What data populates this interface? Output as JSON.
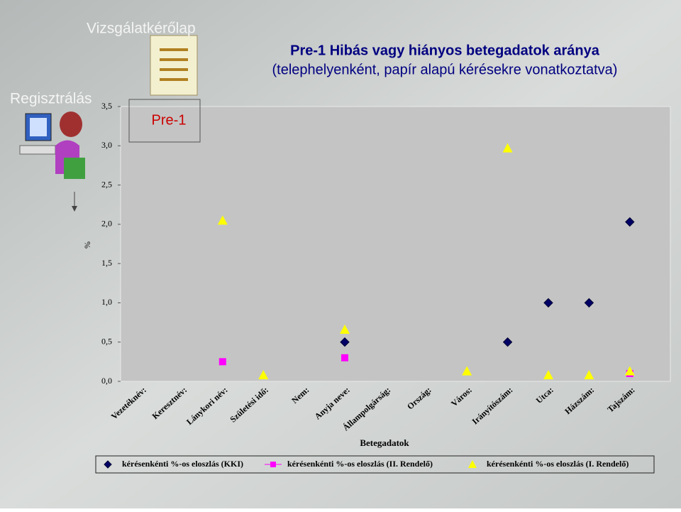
{
  "slide": {
    "heading": "Vizsgálatkérőlap",
    "section": "Regisztrálás",
    "tag": "Pre-1"
  },
  "chart_data": {
    "type": "scatter",
    "title": "Pre-1 Hibás vagy hiányos betegadatok aránya",
    "subtitle": "(telephelyenként, papír alapú kérésekre vonatkoztatva)",
    "x_label": "Betegadatok",
    "y_label": "%",
    "categories": [
      "Vezetéknév:",
      "Keresztnév:",
      "Lánykori név:",
      "Születési idő:",
      "Nem:",
      "Anyja neve:",
      "Állampolgárság:",
      "Ország:",
      "Város:",
      "Irányítószám:",
      "Utca:",
      "Házszám:",
      "Tajszám:"
    ],
    "series": [
      {
        "name": "kérésenkénti %-os eloszlás (KKI)",
        "color": "#000066",
        "marker": "diamond",
        "values": [
          null,
          null,
          null,
          null,
          null,
          0.5,
          null,
          null,
          null,
          0.5,
          1.0,
          1.0,
          2.03
        ]
      },
      {
        "name": "kérésenkénti %-os eloszlás (II. Rendelő)",
        "color": "#ff00ff",
        "marker": "square",
        "values": [
          null,
          null,
          0.25,
          null,
          null,
          0.3,
          null,
          null,
          null,
          null,
          null,
          null,
          0.1
        ]
      },
      {
        "name": "kérésenkénti %-os eloszlás (I. Rendelő)",
        "color": "#ffff00",
        "marker": "triangle",
        "values": [
          null,
          null,
          2.05,
          0.08,
          null,
          0.66,
          null,
          null,
          0.13,
          2.97,
          0.08,
          0.08,
          0.13
        ]
      }
    ],
    "ylim": [
      0,
      3.5
    ],
    "yticks": [
      {
        "value": 0,
        "label": "0,0"
      },
      {
        "value": 0.5,
        "label": "0,5"
      },
      {
        "value": 1,
        "label": "1,0"
      },
      {
        "value": 1.5,
        "label": "1,5"
      },
      {
        "value": 2,
        "label": "2,0"
      },
      {
        "value": 2.5,
        "label": "2,5"
      },
      {
        "value": 3,
        "label": "3,0"
      },
      {
        "value": 3.5,
        "label": "3,5"
      }
    ],
    "grid": false
  }
}
